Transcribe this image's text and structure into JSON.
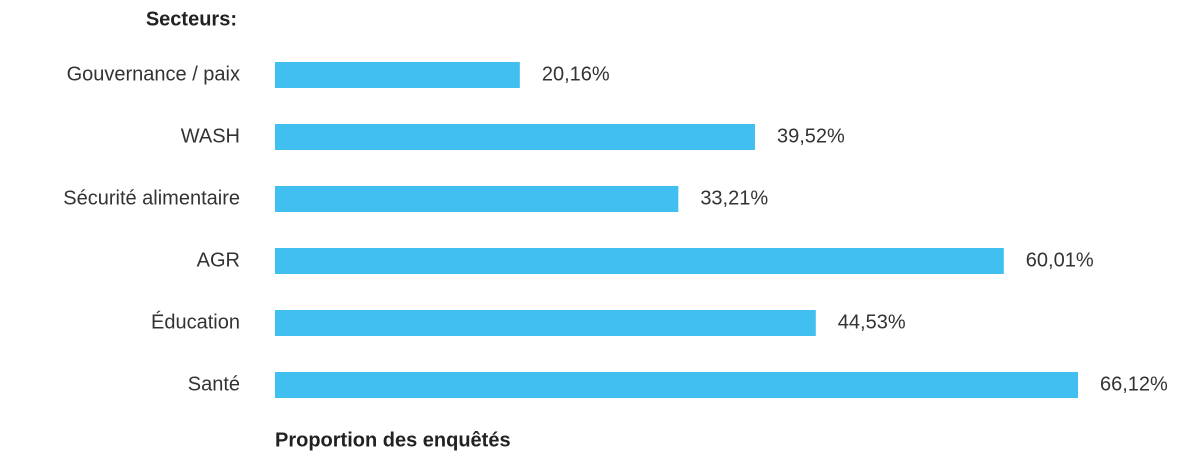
{
  "chart_data": {
    "type": "barh",
    "y_label": "Secteurs:",
    "x_label": "Proportion des enquêtés",
    "categories": [
      "Gouvernance / paix",
      "WASH",
      "Sécurité alimentaire",
      "AGR",
      "Éducation",
      "Santé"
    ],
    "values": [
      20.16,
      39.52,
      33.21,
      60.01,
      44.53,
      66.12
    ],
    "value_labels": [
      "20,16%",
      "39,52%",
      "33,21%",
      "60,01%",
      "44,53%",
      "66,12%"
    ],
    "color": "#40bff0"
  }
}
